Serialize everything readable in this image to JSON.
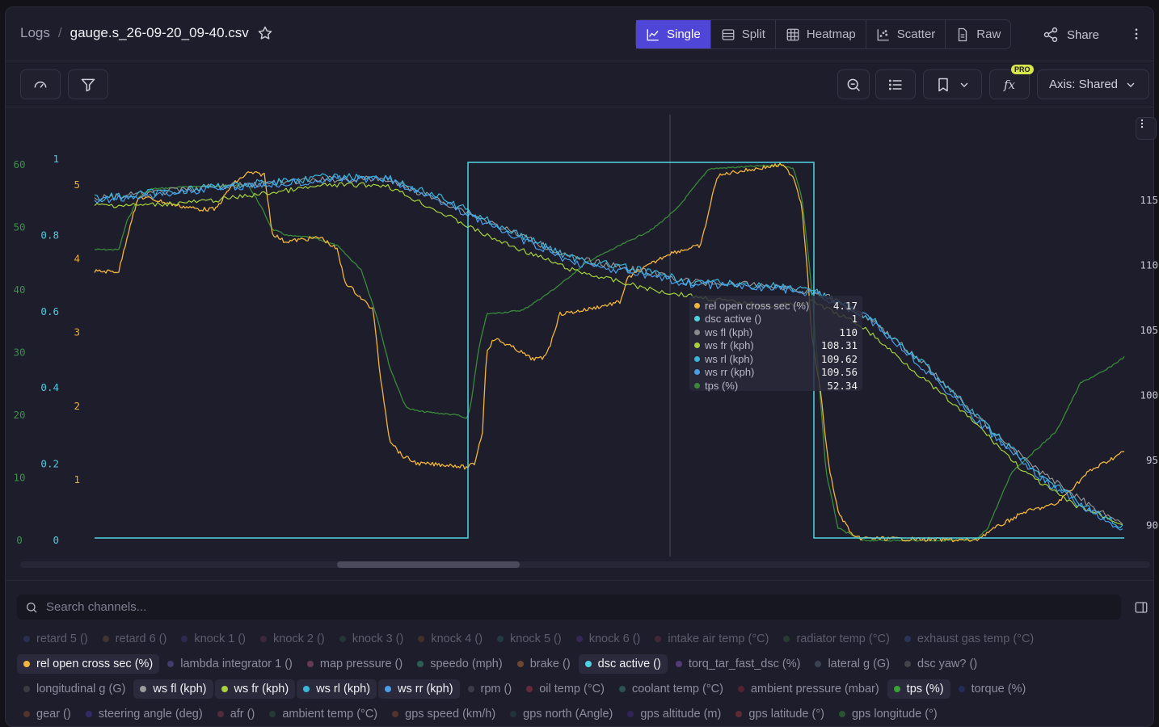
{
  "breadcrumb": {
    "root": "Logs",
    "separator": "/",
    "file": "gauge.s_26-09-20_09-40.csv"
  },
  "view_tabs": [
    {
      "label": "Single",
      "icon": "line-chart-icon",
      "active": true
    },
    {
      "label": "Split",
      "icon": "split-icon",
      "active": false
    },
    {
      "label": "Heatmap",
      "icon": "grid-icon",
      "active": false
    },
    {
      "label": "Scatter",
      "icon": "scatter-icon",
      "active": false
    },
    {
      "label": "Raw",
      "icon": "document-icon",
      "active": false
    }
  ],
  "share_label": "Share",
  "toolbar": {
    "axis_label": "Axis: Shared",
    "pro_badge": "PRO"
  },
  "axes": {
    "left1": [
      "60",
      "50",
      "40",
      "30",
      "20",
      "10",
      "0"
    ],
    "left2": [
      "1",
      "0.8",
      "0.6",
      "0.4",
      "0.2",
      "0"
    ],
    "left3": [
      "5",
      "4",
      "3",
      "2",
      "1"
    ],
    "right": [
      "115",
      "110",
      "105",
      "100",
      "95",
      "90"
    ]
  },
  "tooltip": [
    {
      "name": "rel open cross sec (%)",
      "value": "4.17",
      "color": "#f2b53c"
    },
    {
      "name": "dsc active ()",
      "value": "1",
      "color": "#4fd3e3"
    },
    {
      "name": "ws fl (kph)",
      "value": "110",
      "color": "#8a8a8a"
    },
    {
      "name": "ws fr (kph)",
      "value": "108.31",
      "color": "#a6d13a"
    },
    {
      "name": "ws rl (kph)",
      "value": "109.62",
      "color": "#38b6d8"
    },
    {
      "name": "ws rr (kph)",
      "value": "109.56",
      "color": "#4a9ee8"
    },
    {
      "name": "tps (%)",
      "value": "52.34",
      "color": "#3a8a3a"
    }
  ],
  "search": {
    "placeholder": "Search channels..."
  },
  "chip_rows": [
    [
      {
        "label": "retard 5 ()",
        "color": "#3a4a8a",
        "state": "dim"
      },
      {
        "label": "retard 6 ()",
        "color": "#7a5a3a",
        "state": "dim"
      },
      {
        "label": "knock 1 ()",
        "color": "#4a3a8a",
        "state": "dim"
      },
      {
        "label": "knock 2 ()",
        "color": "#6a3a5a",
        "state": "dim"
      },
      {
        "label": "knock 3 ()",
        "color": "#2a5a4a",
        "state": "dim"
      },
      {
        "label": "knock 4 ()",
        "color": "#7a4a2a",
        "state": "dim"
      },
      {
        "label": "knock 5 ()",
        "color": "#2a6a6a",
        "state": "dim"
      },
      {
        "label": "knock 6 ()",
        "color": "#5a3a9a",
        "state": "dim"
      },
      {
        "label": "intake air temp (°C)",
        "color": "#7a3a4a",
        "state": "dim"
      },
      {
        "label": "radiator temp (°C)",
        "color": "#3a6a3a",
        "state": "dim"
      },
      {
        "label": "exhaust gas temp (°C)",
        "color": "#3a5aa0",
        "state": "dim"
      }
    ],
    [
      {
        "label": "rel open cross sec (%)",
        "color": "#f2b53c",
        "state": "on"
      },
      {
        "label": "lambda integrator 1 ()",
        "color": "#6a5ab0",
        "state": "off"
      },
      {
        "label": "map pressure ()",
        "color": "#b05a7a",
        "state": "off"
      },
      {
        "label": "speedo (mph)",
        "color": "#3aa07a",
        "state": "off"
      },
      {
        "label": "brake ()",
        "color": "#c0703a",
        "state": "off"
      },
      {
        "label": "dsc active ()",
        "color": "#4fd3e3",
        "state": "on"
      },
      {
        "label": "torq_tar_fast_dsc (%)",
        "color": "#8a5ac0",
        "state": "off"
      },
      {
        "label": "lateral g (G)",
        "color": "#5a6a7a",
        "state": "off"
      },
      {
        "label": "dsc yaw? ()",
        "color": "#6a6a6a",
        "state": "off"
      }
    ],
    [
      {
        "label": "longitudinal g (G)",
        "color": "#5a5a5a",
        "state": "off"
      },
      {
        "label": "ws fl (kph)",
        "color": "#9a9a9a",
        "state": "on"
      },
      {
        "label": "ws fr (kph)",
        "color": "#a6d13a",
        "state": "on"
      },
      {
        "label": "ws rl (kph)",
        "color": "#38b6d8",
        "state": "on"
      },
      {
        "label": "ws rr (kph)",
        "color": "#4a9ee8",
        "state": "on"
      },
      {
        "label": "rpm ()",
        "color": "#5a5a6a",
        "state": "off"
      },
      {
        "label": "oil temp (°C)",
        "color": "#b03a4a",
        "state": "off"
      },
      {
        "label": "coolant temp (°C)",
        "color": "#3a8a7a",
        "state": "off"
      },
      {
        "label": "ambient pressure (mbar)",
        "color": "#8a2a3a",
        "state": "off"
      },
      {
        "label": "tps (%)",
        "color": "#3aa03a",
        "state": "on"
      },
      {
        "label": "torque (%)",
        "color": "#2a3a8a",
        "state": "off"
      }
    ],
    [
      {
        "label": "gear ()",
        "color": "#8a4a2a",
        "state": "off"
      },
      {
        "label": "steering angle (deg)",
        "color": "#4a3aa0",
        "state": "off"
      },
      {
        "label": "afr ()",
        "color": "#8a3a4a",
        "state": "off"
      },
      {
        "label": "ambient temp (°C)",
        "color": "#2a5a3a",
        "state": "off"
      },
      {
        "label": "gps speed (km/h)",
        "color": "#8a4a2a",
        "state": "off"
      },
      {
        "label": "gps north (Angle)",
        "color": "#2a4a4a",
        "state": "off"
      },
      {
        "label": "gps altitude (m)",
        "color": "#4a2a8a",
        "state": "off"
      },
      {
        "label": "gps latitude (°)",
        "color": "#a03a3a",
        "state": "off"
      },
      {
        "label": "gps longitude (°)",
        "color": "#3a8a3a",
        "state": "off"
      }
    ]
  ],
  "chart_data": {
    "type": "line",
    "series": [
      {
        "name": "rel open cross sec (%)",
        "color": "#f2b53c",
        "axis": "left3"
      },
      {
        "name": "dsc active ()",
        "color": "#4fd3e3",
        "axis": "left2"
      },
      {
        "name": "ws fl (kph)",
        "color": "#9a9a9a",
        "axis": "right"
      },
      {
        "name": "ws fr (kph)",
        "color": "#a6d13a",
        "axis": "right"
      },
      {
        "name": "ws rl (kph)",
        "color": "#38b6d8",
        "axis": "right"
      },
      {
        "name": "ws rr (kph)",
        "color": "#4a9ee8",
        "axis": "right"
      },
      {
        "name": "tps (%)",
        "color": "#3a8a3a",
        "axis": "left1"
      }
    ],
    "axis_ranges": {
      "left1": [
        0,
        60
      ],
      "left2": [
        0,
        1
      ],
      "left3": [
        0,
        5
      ],
      "right": [
        90,
        115
      ]
    },
    "grid": false,
    "cursor_values": {
      "rel open cross sec (%)": 4.17,
      "dsc active ()": 1,
      "ws fl (kph)": 110,
      "ws fr (kph)": 108.31,
      "ws rl (kph)": 109.62,
      "ws rr (kph)": 109.56,
      "tps (%)": 52.34
    }
  }
}
